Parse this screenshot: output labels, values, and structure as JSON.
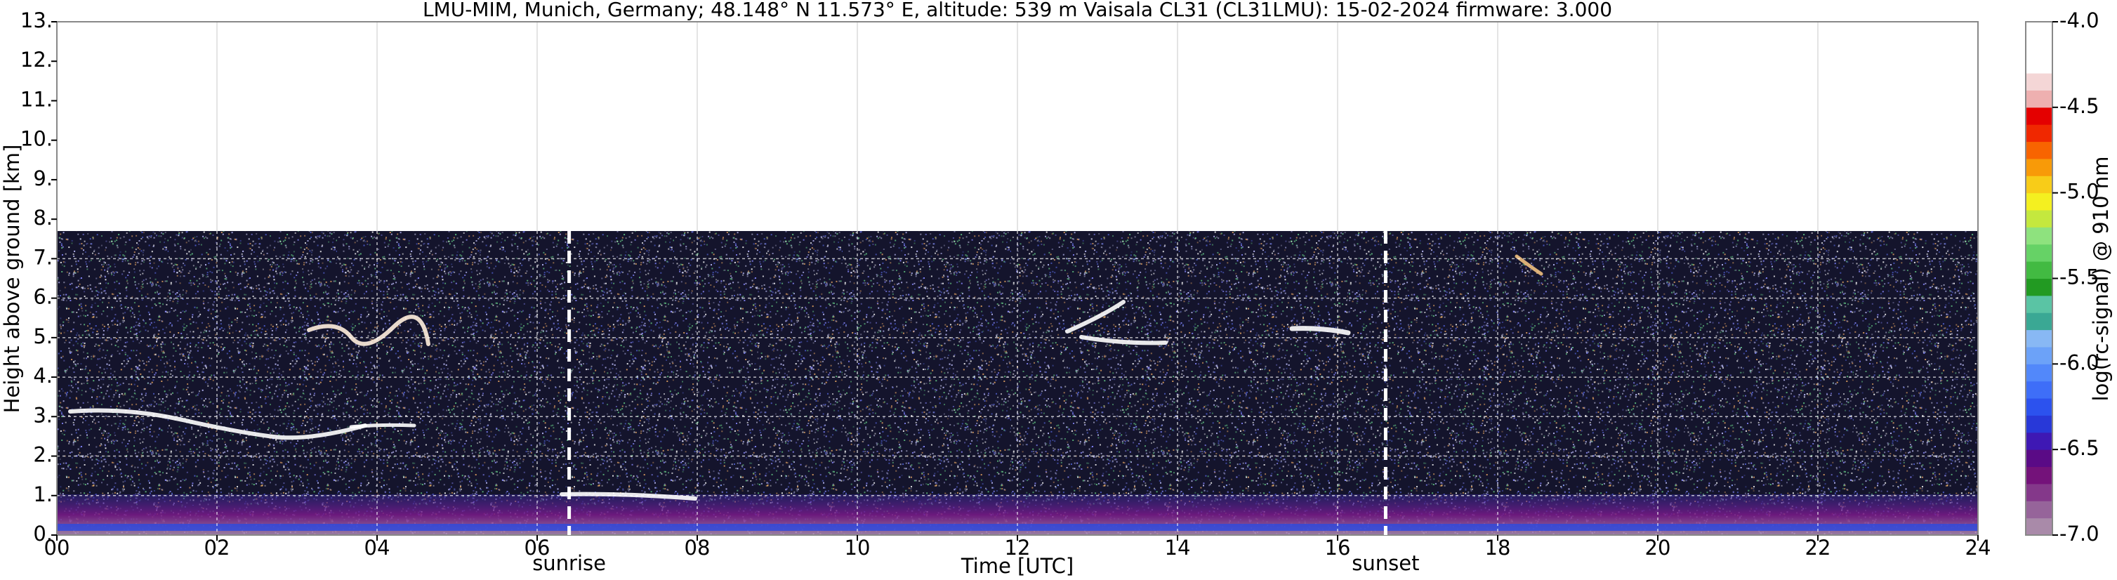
{
  "chart_data": {
    "type": "heatmap",
    "title": "LMU-MIM, Munich, Germany; 48.148° N 11.573° E, altitude: 539 m    Vaisala CL31 (CL31LMU): 15-02-2024    firmware: 3.000",
    "x_label": "Time [UTC]",
    "y_label": "Height above ground [km]",
    "xlim": [
      0,
      24
    ],
    "xticks": [
      {
        "value": 0,
        "label": "00"
      },
      {
        "value": 2,
        "label": "02"
      },
      {
        "value": 4,
        "label": "04"
      },
      {
        "value": 6,
        "label": "06"
      },
      {
        "value": 8,
        "label": "08"
      },
      {
        "value": 10,
        "label": "10"
      },
      {
        "value": 12,
        "label": "12"
      },
      {
        "value": 14,
        "label": "14"
      },
      {
        "value": 16,
        "label": "16"
      },
      {
        "value": 18,
        "label": "18"
      },
      {
        "value": 20,
        "label": "20"
      },
      {
        "value": 22,
        "label": "22"
      },
      {
        "value": 24,
        "label": "24"
      }
    ],
    "ylim": [
      0,
      13
    ],
    "yticks": [
      {
        "value": 0,
        "label": "0."
      },
      {
        "value": 1,
        "label": "1."
      },
      {
        "value": 2,
        "label": "2."
      },
      {
        "value": 3,
        "label": "3."
      },
      {
        "value": 4,
        "label": "4."
      },
      {
        "value": 5,
        "label": "5."
      },
      {
        "value": 6,
        "label": "6."
      },
      {
        "value": 7,
        "label": "7."
      },
      {
        "value": 8,
        "label": "8."
      },
      {
        "value": 9,
        "label": "9."
      },
      {
        "value": 10,
        "label": "10."
      },
      {
        "value": 11,
        "label": "11."
      },
      {
        "value": 12,
        "label": "12."
      },
      {
        "value": 13,
        "label": "13."
      }
    ],
    "grid": true,
    "signal_range_top": 7.7,
    "annotations": [
      {
        "text": "sunrise",
        "x": 6.4
      },
      {
        "text": "sunset",
        "x": 16.6
      }
    ],
    "colorbar": {
      "label": "log(rc-signal) @ 910 nm",
      "clim": [
        -7,
        -4
      ],
      "ticks": [
        {
          "value": -7,
          "label": "-7.0"
        },
        {
          "value": -6.5,
          "label": "-6.5"
        },
        {
          "value": -6,
          "label": "-6.0"
        },
        {
          "value": -5.5,
          "label": "-5.5"
        },
        {
          "value": -5,
          "label": "-5.0"
        },
        {
          "value": -4.5,
          "label": "-4.5"
        },
        {
          "value": -4,
          "label": "-4.0"
        }
      ],
      "colormap": [
        "#a98aa9",
        "#96649a",
        "#84388a",
        "#74127a",
        "#5a0a86",
        "#3e18b4",
        "#2838d8",
        "#2c52ee",
        "#3e6ef8",
        "#5288fa",
        "#6ca2f8",
        "#88b8f4",
        "#3aa894",
        "#5ac4a4",
        "#229a22",
        "#42ba42",
        "#66d266",
        "#8ee27e",
        "#c4e83e",
        "#f4f020",
        "#f8cc18",
        "#f89a08",
        "#f86400",
        "#f02800",
        "#e40000",
        "#eeb0b0",
        "#f4d6d6",
        "#ffffff",
        "#ffffff",
        "#ffffff"
      ]
    }
  }
}
